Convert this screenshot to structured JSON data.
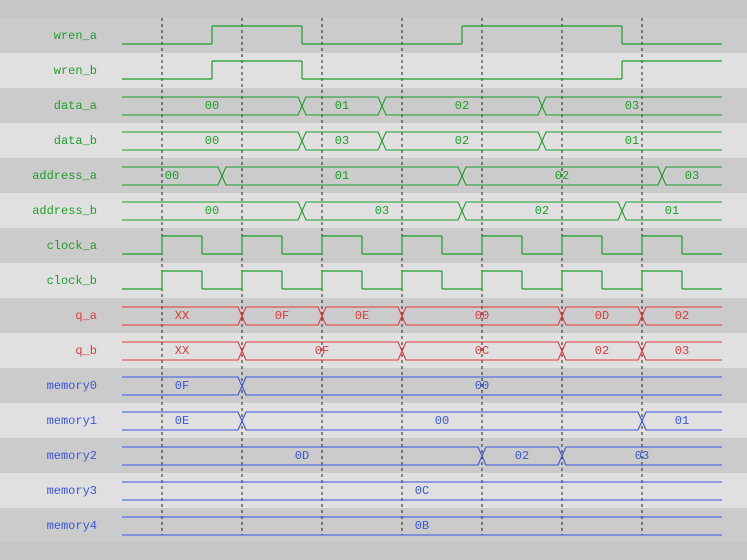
{
  "signals": [
    {
      "name": "wren_a",
      "color": "#1e9e28",
      "kind": "digital",
      "segments": [
        {
          "level": 0,
          "end": 2.25
        },
        {
          "level": 1,
          "end": 4.5
        },
        {
          "level": 0,
          "end": 8.5
        },
        {
          "level": 1,
          "end": 12.5
        },
        {
          "level": 0,
          "end": 15
        }
      ]
    },
    {
      "name": "wren_b",
      "color": "#1e9e28",
      "kind": "digital",
      "segments": [
        {
          "level": 0,
          "end": 2.25
        },
        {
          "level": 1,
          "end": 4.5
        },
        {
          "level": 0,
          "end": 12.5
        },
        {
          "level": 1,
          "end": 15
        }
      ]
    },
    {
      "name": "data_a",
      "color": "#1e9e28",
      "kind": "bus",
      "segments": [
        {
          "text": "00",
          "end": 4.5
        },
        {
          "text": "01",
          "end": 6.5
        },
        {
          "text": "02",
          "end": 10.5
        },
        {
          "text": "03",
          "end": 15
        }
      ]
    },
    {
      "name": "data_b",
      "color": "#1e9e28",
      "kind": "bus",
      "segments": [
        {
          "text": "00",
          "end": 4.5
        },
        {
          "text": "03",
          "end": 6.5
        },
        {
          "text": "02",
          "end": 10.5
        },
        {
          "text": "01",
          "end": 15
        }
      ]
    },
    {
      "name": "address_a",
      "color": "#1e9e28",
      "kind": "bus",
      "segments": [
        {
          "text": "00",
          "end": 2.5
        },
        {
          "text": "01",
          "end": 8.5
        },
        {
          "text": "02",
          "end": 13.5
        },
        {
          "text": "03",
          "end": 15
        }
      ]
    },
    {
      "name": "address_b",
      "color": "#1e9e28",
      "kind": "bus",
      "segments": [
        {
          "text": "00",
          "end": 4.5
        },
        {
          "text": "03",
          "end": 8.5
        },
        {
          "text": "02",
          "end": 12.5
        },
        {
          "text": "01",
          "end": 15
        }
      ]
    },
    {
      "name": "clock_a",
      "color": "#1e9e28",
      "kind": "digital",
      "segments": [
        {
          "level": 0,
          "end": 1
        },
        {
          "level": 1,
          "end": 2
        },
        {
          "level": 0,
          "end": 3
        },
        {
          "level": 1,
          "end": 4
        },
        {
          "level": 0,
          "end": 5
        },
        {
          "level": 1,
          "end": 6
        },
        {
          "level": 0,
          "end": 7
        },
        {
          "level": 1,
          "end": 8
        },
        {
          "level": 0,
          "end": 9
        },
        {
          "level": 1,
          "end": 10
        },
        {
          "level": 0,
          "end": 11
        },
        {
          "level": 1,
          "end": 12
        },
        {
          "level": 0,
          "end": 13
        },
        {
          "level": 1,
          "end": 14
        },
        {
          "level": 0,
          "end": 15
        }
      ]
    },
    {
      "name": "clock_b",
      "color": "#1e9e28",
      "kind": "digital",
      "segments": [
        {
          "level": 0,
          "end": 1
        },
        {
          "level": 1,
          "end": 2
        },
        {
          "level": 0,
          "end": 3
        },
        {
          "level": 1,
          "end": 4
        },
        {
          "level": 0,
          "end": 5
        },
        {
          "level": 1,
          "end": 6
        },
        {
          "level": 0,
          "end": 7
        },
        {
          "level": 1,
          "end": 8
        },
        {
          "level": 0,
          "end": 9
        },
        {
          "level": 1,
          "end": 10
        },
        {
          "level": 0,
          "end": 11
        },
        {
          "level": 1,
          "end": 12
        },
        {
          "level": 0,
          "end": 13
        },
        {
          "level": 1,
          "end": 14
        },
        {
          "level": 0,
          "end": 15
        }
      ]
    },
    {
      "name": "q_a",
      "color": "#e03a3a",
      "kind": "bus",
      "segments": [
        {
          "text": "XX",
          "end": 3
        },
        {
          "text": "0F",
          "end": 5
        },
        {
          "text": "0E",
          "end": 7
        },
        {
          "text": "00",
          "end": 11
        },
        {
          "text": "0D",
          "end": 13
        },
        {
          "text": "02",
          "end": 15
        }
      ]
    },
    {
      "name": "q_b",
      "color": "#e03a3a",
      "kind": "bus",
      "segments": [
        {
          "text": "XX",
          "end": 3
        },
        {
          "text": "0F",
          "end": 7
        },
        {
          "text": "0C",
          "end": 11
        },
        {
          "text": "02",
          "end": 13
        },
        {
          "text": "03",
          "end": 15
        }
      ]
    },
    {
      "name": "memory0",
      "color": "#3a55e0",
      "kind": "bus",
      "segments": [
        {
          "text": "0F",
          "end": 3
        },
        {
          "text": "00",
          "end": 15
        }
      ]
    },
    {
      "name": "memory1",
      "color": "#3a55e0",
      "kind": "bus",
      "segments": [
        {
          "text": "0E",
          "end": 3
        },
        {
          "text": "00",
          "end": 13
        },
        {
          "text": "01",
          "end": 15
        }
      ]
    },
    {
      "name": "memory2",
      "color": "#3a55e0",
      "kind": "bus",
      "segments": [
        {
          "text": "0D",
          "end": 9
        },
        {
          "text": "02",
          "end": 11
        },
        {
          "text": "03",
          "end": 15
        }
      ]
    },
    {
      "name": "memory3",
      "color": "#3a55e0",
      "kind": "bus",
      "segments": [
        {
          "text": "0C",
          "end": 15
        }
      ]
    },
    {
      "name": "memory4",
      "color": "#3a55e0",
      "kind": "bus",
      "segments": [
        {
          "text": "0B",
          "end": 15
        }
      ]
    }
  ]
}
